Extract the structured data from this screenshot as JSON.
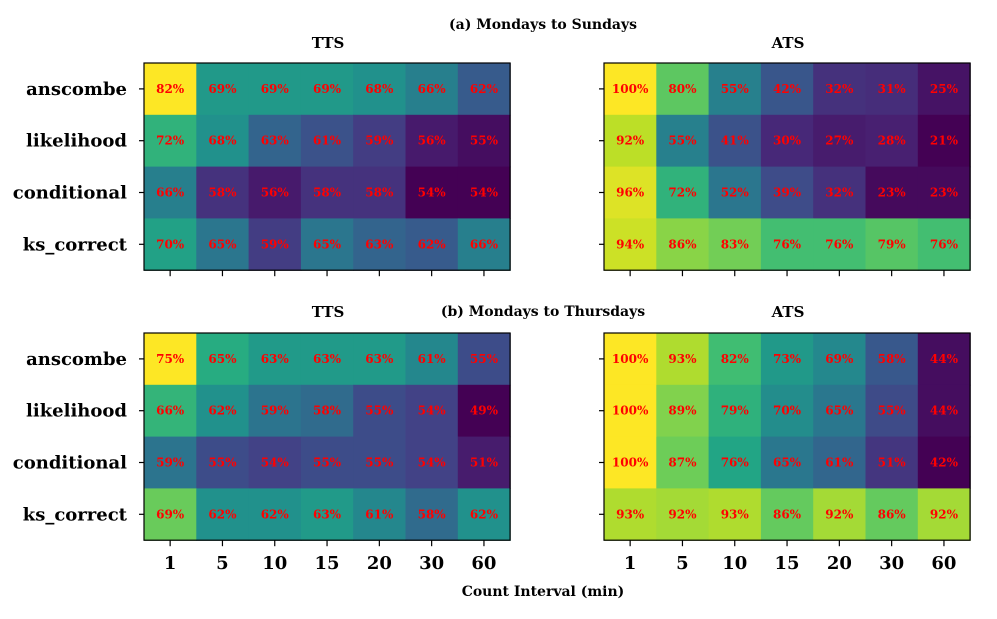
{
  "chart_data": {
    "type": "heatmap",
    "xlabel": "Count Interval (min)",
    "categories_x": [
      "1",
      "5",
      "10",
      "15",
      "20",
      "30",
      "60"
    ],
    "categories_y": [
      "anscombe",
      "likelihood",
      "conditional",
      "ks_correct"
    ],
    "colormap": "viridis",
    "value_format": "percent",
    "groups": [
      {
        "title": "(a) Mondays to Sundays",
        "panels": [
          {
            "title": "TTS",
            "values": [
              [
                82,
                69,
                69,
                69,
                68,
                66,
                62
              ],
              [
                72,
                68,
                63,
                61,
                59,
                56,
                55
              ],
              [
                66,
                58,
                56,
                58,
                58,
                54,
                54
              ],
              [
                70,
                65,
                59,
                65,
                63,
                62,
                66
              ]
            ]
          },
          {
            "title": "ATS",
            "values": [
              [
                100,
                80,
                55,
                42,
                32,
                31,
                25
              ],
              [
                92,
                55,
                41,
                30,
                27,
                28,
                21
              ],
              [
                96,
                72,
                52,
                39,
                32,
                23,
                23
              ],
              [
                94,
                86,
                83,
                76,
                76,
                79,
                76
              ]
            ]
          }
        ]
      },
      {
        "title": "(b) Mondays to Thursdays",
        "panels": [
          {
            "title": "TTS",
            "values": [
              [
                75,
                65,
                63,
                63,
                63,
                61,
                55
              ],
              [
                66,
                62,
                59,
                58,
                55,
                54,
                49
              ],
              [
                59,
                55,
                54,
                55,
                55,
                54,
                51
              ],
              [
                69,
                62,
                62,
                63,
                61,
                58,
                62
              ]
            ]
          },
          {
            "title": "ATS",
            "values": [
              [
                100,
                93,
                82,
                73,
                69,
                58,
                44
              ],
              [
                100,
                89,
                79,
                70,
                65,
                55,
                44
              ],
              [
                100,
                87,
                76,
                65,
                61,
                51,
                42
              ],
              [
                93,
                92,
                93,
                86,
                92,
                86,
                92
              ]
            ]
          }
        ]
      }
    ]
  }
}
